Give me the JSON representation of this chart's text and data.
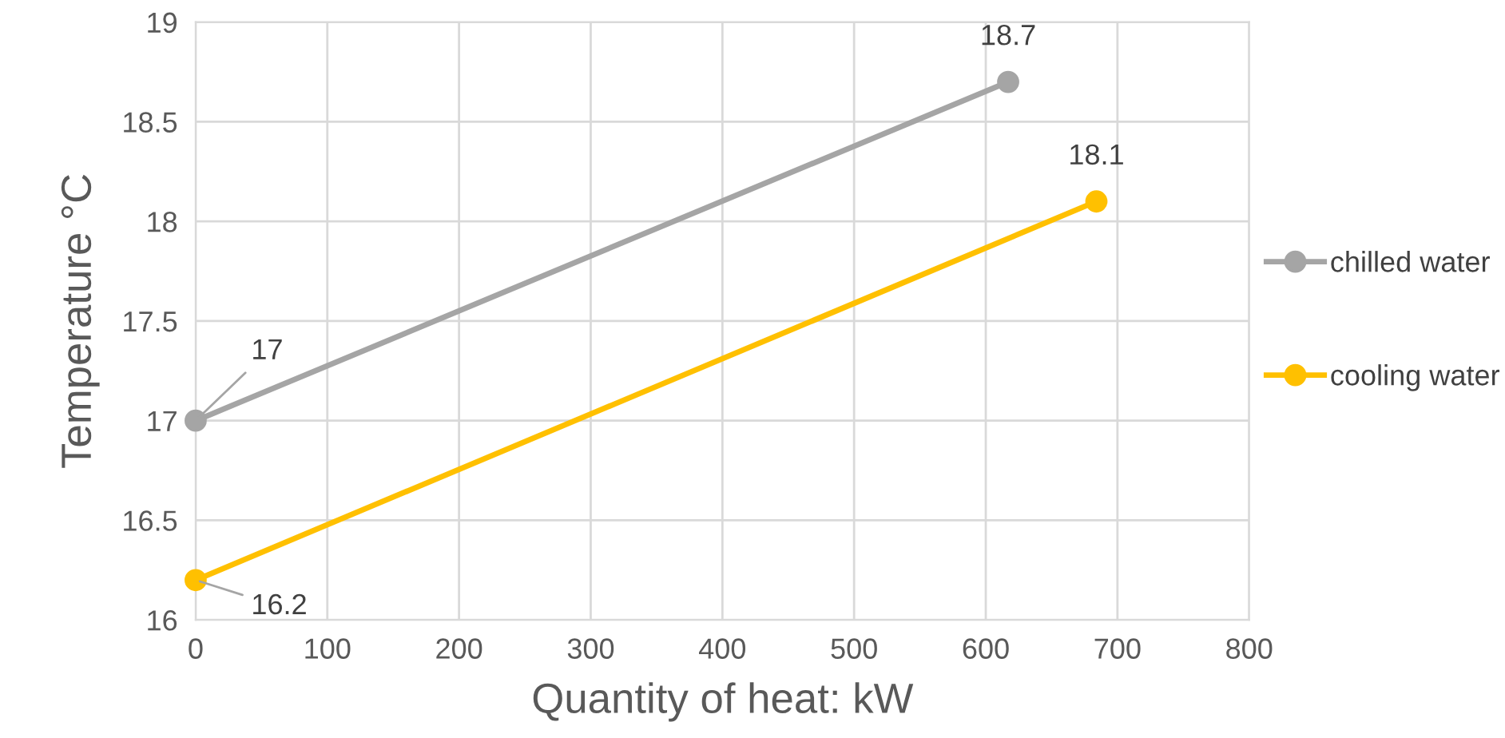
{
  "chart_data": {
    "type": "line",
    "xlabel": "Quantity of heat: kW",
    "ylabel": "Temperature °C",
    "xlim": [
      0,
      800
    ],
    "xticks": [
      0,
      100,
      200,
      300,
      400,
      500,
      600,
      700,
      800
    ],
    "ylim": [
      16,
      19
    ],
    "yticks": [
      16,
      16.5,
      17,
      17.5,
      18,
      18.5,
      19
    ],
    "grid": true,
    "legend": "right",
    "marker": "circle",
    "line_style": "solid",
    "data_labels": true,
    "series": [
      {
        "name": "chilled water",
        "color": "#a5a5a5",
        "x": [
          0,
          617
        ],
        "values": [
          17,
          18.7
        ]
      },
      {
        "name": "cooling water",
        "color": "#ffc000",
        "x": [
          0,
          684
        ],
        "values": [
          16.2,
          18.1
        ]
      }
    ]
  }
}
